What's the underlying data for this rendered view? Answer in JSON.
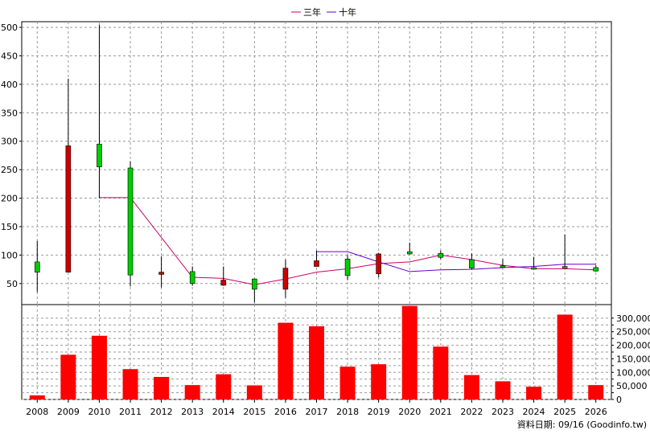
{
  "chart_data": [
    {
      "type": "candlestick",
      "legend_position": "top-center",
      "colors": {
        "up": "#00cc00",
        "down": "#cc0000",
        "ma3": "#cc0066",
        "ma10": "#6600cc",
        "grid": "#999999"
      },
      "series": [
        {
          "name": "三年",
          "color": "#cc0066"
        },
        {
          "name": "十年",
          "color": "#6600cc"
        }
      ],
      "categories": [
        "2008",
        "2009",
        "2010",
        "2011",
        "2012",
        "2013",
        "2014",
        "2015",
        "2016",
        "2017",
        "2018",
        "2019",
        "2020",
        "2021",
        "2022",
        "2023",
        "2024",
        "2025",
        "2026"
      ],
      "ohlc": [
        {
          "o": 70,
          "h": 125,
          "l": 35,
          "c": 88
        },
        {
          "o": 292,
          "h": 410,
          "l": 70,
          "c": 70
        },
        {
          "o": 255,
          "h": 505,
          "l": 200,
          "c": 295
        },
        {
          "o": 65,
          "h": 265,
          "l": 45,
          "c": 253
        },
        {
          "o": 70,
          "h": 98,
          "l": 43,
          "c": 66
        },
        {
          "o": 50,
          "h": 80,
          "l": 46,
          "c": 71
        },
        {
          "o": 56,
          "h": 80,
          "l": 46,
          "c": 47
        },
        {
          "o": 40,
          "h": 59,
          "l": 17,
          "c": 58
        },
        {
          "o": 77,
          "h": 92,
          "l": 25,
          "c": 40
        },
        {
          "o": 90,
          "h": 108,
          "l": 80,
          "c": 80
        },
        {
          "o": 64,
          "h": 100,
          "l": 56,
          "c": 93
        },
        {
          "o": 102,
          "h": 104,
          "l": 61,
          "c": 67
        },
        {
          "o": 102,
          "h": 122,
          "l": 101,
          "c": 106
        },
        {
          "o": 96,
          "h": 108,
          "l": 93,
          "c": 103
        },
        {
          "o": 77,
          "h": 103,
          "l": 75,
          "c": 92
        },
        {
          "o": 80,
          "h": 93,
          "l": 78,
          "c": 81
        },
        {
          "o": 78,
          "h": 97,
          "l": 75,
          "c": 78
        },
        {
          "o": 80,
          "h": 136,
          "l": 77,
          "c": 80
        },
        {
          "o": 72,
          "h": 82,
          "l": 71,
          "c": 78
        }
      ],
      "ma3": [
        {
          "x": "2010",
          "y": 201
        },
        {
          "x": "2011",
          "y": 201
        },
        {
          "x": "2013",
          "y": 61
        },
        {
          "x": "2014",
          "y": 59
        },
        {
          "x": "2015",
          "y": 48
        },
        {
          "x": "2016",
          "y": 58
        },
        {
          "x": "2017",
          "y": 70
        },
        {
          "x": "2018",
          "y": 76
        },
        {
          "x": "2019",
          "y": 85
        },
        {
          "x": "2020",
          "y": 88
        },
        {
          "x": "2021",
          "y": 100
        },
        {
          "x": "2022",
          "y": 92
        },
        {
          "x": "2023",
          "y": 82
        },
        {
          "x": "2024",
          "y": 76
        },
        {
          "x": "2025",
          "y": 76
        },
        {
          "x": "2026",
          "y": 74
        }
      ],
      "ma10": [
        {
          "x": "2017",
          "y": 106
        },
        {
          "x": "2018",
          "y": 106
        },
        {
          "x": "2019",
          "y": 88
        },
        {
          "x": "2020",
          "y": 71
        },
        {
          "x": "2021",
          "y": 74
        },
        {
          "x": "2022",
          "y": 75
        },
        {
          "x": "2023",
          "y": 78
        },
        {
          "x": "2024",
          "y": 80
        },
        {
          "x": "2025",
          "y": 84
        },
        {
          "x": "2026",
          "y": 84
        }
      ],
      "ylim": [
        13,
        510
      ],
      "yticks": [
        50,
        100,
        150,
        200,
        250,
        300,
        350,
        400,
        450,
        500
      ]
    },
    {
      "type": "bar",
      "color": "#ff0000",
      "categories": [
        "2008",
        "2009",
        "2010",
        "2011",
        "2012",
        "2013",
        "2014",
        "2015",
        "2016",
        "2017",
        "2018",
        "2019",
        "2020",
        "2021",
        "2022",
        "2023",
        "2024",
        "2025",
        "2026"
      ],
      "values": [
        15000,
        165000,
        235000,
        112000,
        83000,
        53000,
        93000,
        52000,
        283000,
        270000,
        121000,
        130000,
        345000,
        195000,
        90000,
        67000,
        47000,
        313000,
        53000
      ],
      "ylim": [
        0,
        350000
      ],
      "yticks": [
        0,
        25000,
        50000,
        75000,
        100000,
        125000,
        150000,
        175000,
        200000,
        225000,
        250000,
        275000,
        300000
      ],
      "ytick_labels": [
        "0",
        "",
        "50,000",
        "",
        "100,000",
        "",
        "150,000",
        "",
        "200,000",
        "",
        "250,000",
        "",
        "300,000"
      ]
    }
  ],
  "footer": {
    "source": "資料日期: 09/16  (Goodinfo.tw)"
  }
}
